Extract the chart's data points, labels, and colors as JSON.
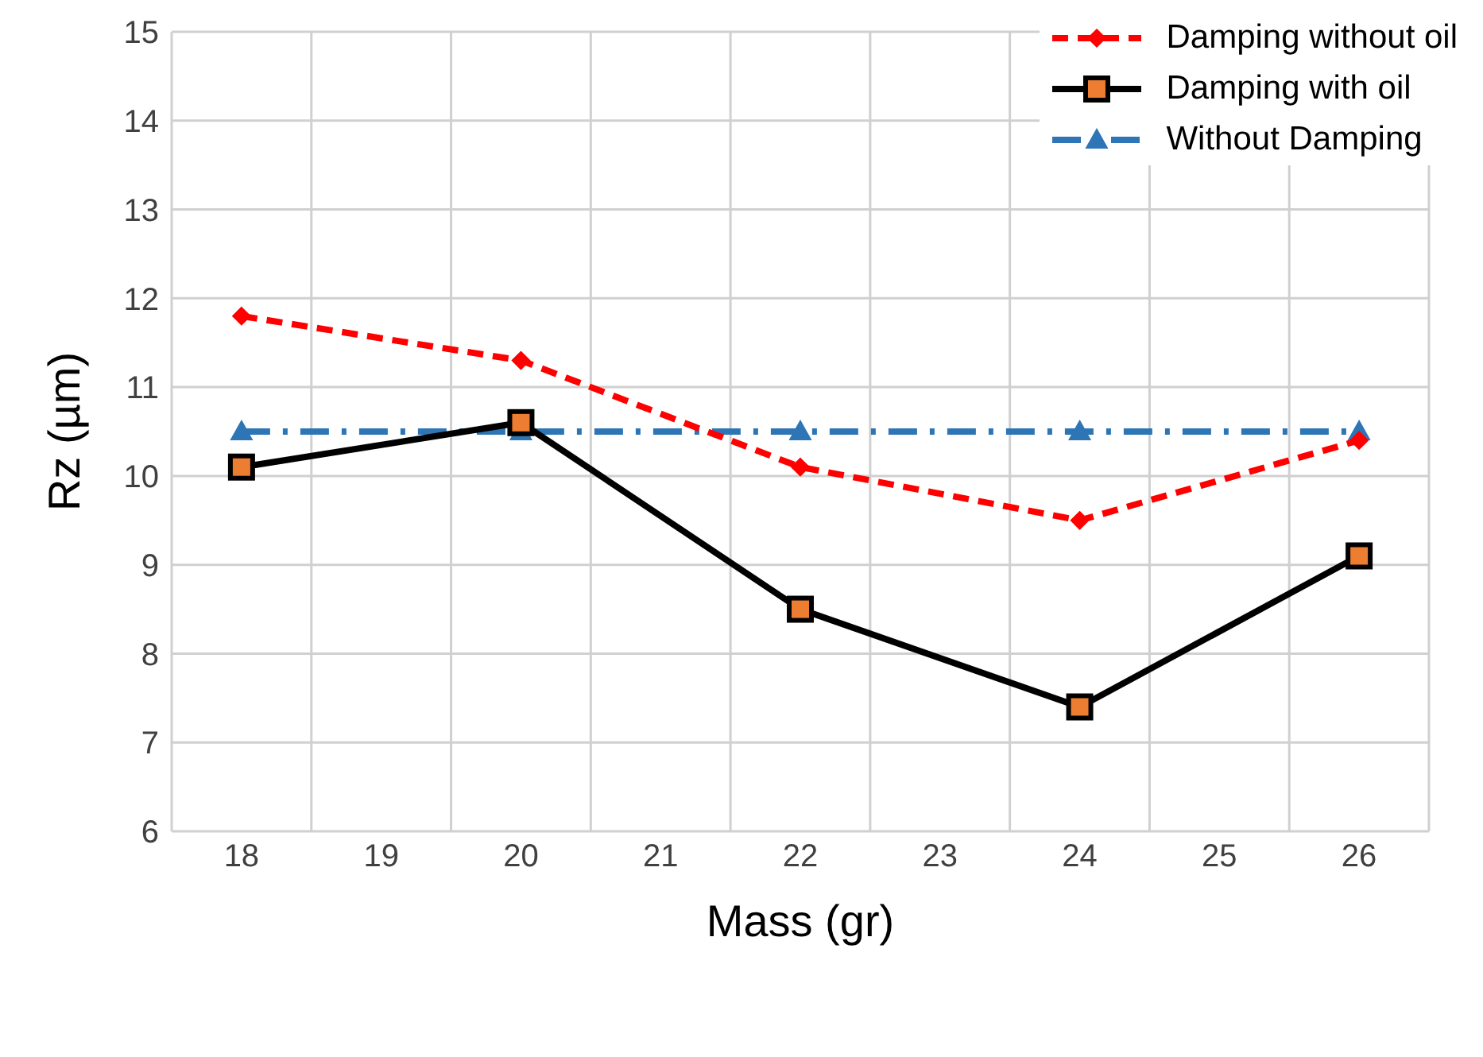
{
  "chart_data": {
    "type": "line",
    "xlabel": "Mass (gr)",
    "ylabel": "Rz (µm)",
    "categories": [
      "18",
      "19",
      "20",
      "21",
      "22",
      "23",
      "24",
      "25",
      "26"
    ],
    "series": [
      {
        "name": "Damping without oil",
        "color": "#ff0000",
        "marker": "diamond",
        "line_style": "dashed",
        "values": [
          11.8,
          null,
          11.3,
          null,
          10.1,
          null,
          9.5,
          null,
          10.4
        ]
      },
      {
        "name": "Damping with oil",
        "color": "#000000",
        "colors": [
          "#ed7d31",
          null,
          "#ed7d31",
          null,
          "#ed7d31",
          null,
          "#ed7d31",
          null,
          "#ed7d31"
        ],
        "marker": "square",
        "line_style": "solid",
        "values": [
          10.1,
          null,
          10.6,
          null,
          8.5,
          null,
          7.4,
          null,
          9.1
        ]
      },
      {
        "name": "Without Damping",
        "color": "#2e75b6",
        "marker": "triangle",
        "line_style": "dashdot",
        "values": [
          10.5,
          null,
          10.5,
          null,
          10.5,
          null,
          10.5,
          null,
          10.5
        ]
      }
    ],
    "ylim": [
      6,
      15
    ],
    "yticks": [
      6,
      7,
      8,
      9,
      10,
      11,
      12,
      13,
      14,
      15
    ],
    "grid": true,
    "legend": "top right"
  }
}
